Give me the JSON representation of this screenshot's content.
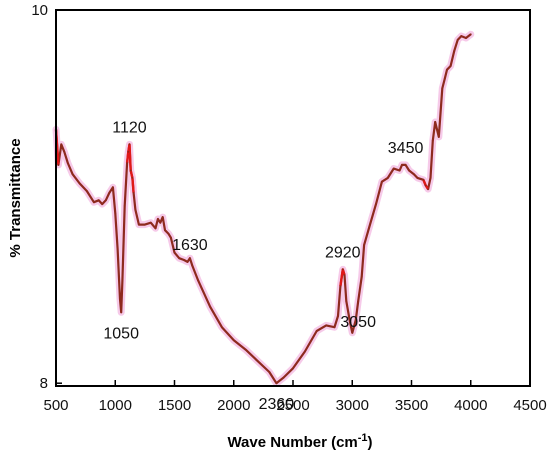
{
  "chart_data": {
    "type": "line",
    "xlabel_main": "Wave Number (cm",
    "xlabel_sup": "-1",
    "xlabel_close": ")",
    "ylabel": "% Transmittance",
    "xlim": [
      500,
      4500
    ],
    "ylim": [
      7.985,
      10.0
    ],
    "x_ticks": [
      500,
      1000,
      1500,
      2000,
      2500,
      3000,
      3500,
      4000,
      4500
    ],
    "y_ticks": [
      8,
      10
    ],
    "grid": false,
    "colors": {
      "line": "#8e2a1e",
      "halo": "#f3b8e2",
      "accent": "#e01818",
      "frame": "#000000"
    },
    "series": [
      {
        "x": [
          500,
          520,
          545,
          570,
          600,
          640,
          700,
          760,
          820,
          860,
          890,
          920,
          950,
          980,
          1000,
          1020,
          1040,
          1050,
          1060,
          1080,
          1100,
          1110,
          1120,
          1130,
          1145,
          1155,
          1170,
          1200,
          1250,
          1300,
          1340,
          1360,
          1380,
          1400,
          1420,
          1450,
          1470,
          1500,
          1540,
          1580,
          1610,
          1630,
          1650,
          1700,
          1800,
          1900,
          2000,
          2100,
          2200,
          2300,
          2360,
          2420,
          2500,
          2600,
          2700,
          2780,
          2850,
          2880,
          2900,
          2920,
          2935,
          2950,
          2980,
          3000,
          3030,
          3050,
          3080,
          3100,
          3150,
          3200,
          3250,
          3300,
          3350,
          3400,
          3420,
          3450,
          3480,
          3520,
          3550,
          3600,
          3620,
          3640,
          3660,
          3680,
          3700,
          3730,
          3760,
          3780,
          3800,
          3830,
          3860,
          3890,
          3920,
          3960,
          4000
        ],
        "y": [
          9.36,
          9.17,
          9.28,
          9.24,
          9.18,
          9.12,
          9.07,
          9.03,
          8.97,
          8.98,
          8.96,
          8.98,
          9.02,
          9.05,
          8.91,
          8.72,
          8.45,
          8.38,
          8.55,
          8.95,
          9.18,
          9.24,
          9.28,
          9.14,
          9.1,
          9.02,
          8.93,
          8.85,
          8.85,
          8.86,
          8.83,
          8.88,
          8.86,
          8.89,
          8.82,
          8.8,
          8.78,
          8.7,
          8.67,
          8.66,
          8.65,
          8.67,
          8.63,
          8.55,
          8.41,
          8.3,
          8.23,
          8.18,
          8.12,
          8.06,
          8.0,
          8.03,
          8.08,
          8.17,
          8.28,
          8.31,
          8.3,
          8.36,
          8.52,
          8.61,
          8.58,
          8.44,
          8.33,
          8.27,
          8.34,
          8.44,
          8.57,
          8.74,
          8.85,
          8.96,
          9.08,
          9.1,
          9.15,
          9.14,
          9.17,
          9.17,
          9.14,
          9.12,
          9.1,
          9.09,
          9.06,
          9.04,
          9.1,
          9.3,
          9.4,
          9.32,
          9.58,
          9.63,
          9.68,
          9.7,
          9.78,
          9.84,
          9.86,
          9.85,
          9.87
        ]
      }
    ],
    "annotations": [
      {
        "label": "1120",
        "x": 1120,
        "y": 9.28,
        "pos": "above"
      },
      {
        "label": "1050",
        "x": 1050,
        "y": 8.38,
        "pos": "below"
      },
      {
        "label": "1630",
        "x": 1630,
        "y": 8.65,
        "pos": "above"
      },
      {
        "label": "2360",
        "x": 2360,
        "y": 8.0,
        "pos": "below"
      },
      {
        "label": "2920",
        "x": 2920,
        "y": 8.61,
        "pos": "above"
      },
      {
        "label": "3050",
        "x": 3050,
        "y": 8.44,
        "pos": "below"
      },
      {
        "label": "3450",
        "x": 3450,
        "y": 9.17,
        "pos": "above"
      }
    ]
  }
}
